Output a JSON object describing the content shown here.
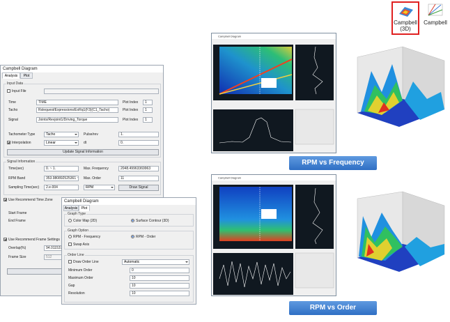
{
  "toolbar": {
    "campbell_3d": "Campbell (3D)",
    "campbell": "Campbell"
  },
  "dialog1": {
    "title": "Campbell Diagram",
    "tabs": [
      "Analysis",
      "Plot"
    ],
    "input_data": {
      "group": "Input Data",
      "input_file": "Input File",
      "time_label": "Time",
      "time_value": "TIME",
      "tacho_label": "Tacho",
      "tacho_value": "Rslequest/Expressions/ExRq1(F3)(C1_Tacho)",
      "signal_label": "Signal",
      "signal_value": "Joints/Revjoint1/Driving_Torque",
      "plot_index_labels": [
        "Plot Index",
        "Plot Index",
        "Plot Index"
      ],
      "plot_index_values": [
        "1",
        "1",
        "1"
      ],
      "tacho_type_label": "Tachometer Type",
      "tacho_type_value": "Tacho",
      "pulse_label": "Pulse/rev",
      "pulse_value": "1.",
      "interpolation": "Interpolation",
      "interpolation_value": "Linear",
      "dt_label": "dt",
      "dt_value": "0.",
      "update_button": "Update Signal Information"
    },
    "signal_info": {
      "group": "Signal Information",
      "time_label": "Time(sec)",
      "time_value": "0. ~ 1.",
      "max_freq_label": "Max. Frequency",
      "max_freq_value": "2048.49963369963",
      "rpm_band_label": "RPM Band",
      "rpm_band_value": "353.980892525361 ~ 39",
      "max_order_label": "Max. Order",
      "max_order_value": "11",
      "sampling_label": "Sampling Time(sec)",
      "sampling_value": "2.e-004",
      "unit_value": "RPM",
      "draw_button": "Draw Signal"
    },
    "time_zone": "Use Recommend Time Zone",
    "start_frame": "Start Frame",
    "end_frame": "End Frame",
    "frame_settings": "Use Recommend Frame Settings",
    "overlap_label": "Overlap(%)",
    "overlap_value": "94.0115375",
    "frame_size_label": "Frame Size",
    "frame_size_value": "512",
    "advanced_button": "Advanced Setting"
  },
  "dialog2": {
    "title": "Campbell Diagram",
    "tabs": [
      "Analysis",
      "Plot"
    ],
    "graph_type": "Graph Type",
    "color_map": "Color Map (2D)",
    "surface_contour": "Surface Contour (3D)",
    "graph_option": "Graph Option",
    "rpm_frequency": "RPM - Frequency",
    "rpm_order": "RPM - Order",
    "swap_axis": "Swap Axis",
    "order_line": "Order Line",
    "draw_order_line": "Draw Order Line",
    "automatic": "Automatic",
    "min_order_label": "Minimum Order",
    "min_order_value": "0",
    "max_order_label": "Maximum Order",
    "max_order_value": "10",
    "gap_label": "Gap",
    "gap_value": "10",
    "resolution_label": "Resolution",
    "resolution_value": "10"
  },
  "thumbnails": {
    "window_title": "Campbell Diagram"
  },
  "labels": {
    "rpm_frequency": "RPM vs Frequency",
    "rpm_order": "RPM vs Order"
  }
}
